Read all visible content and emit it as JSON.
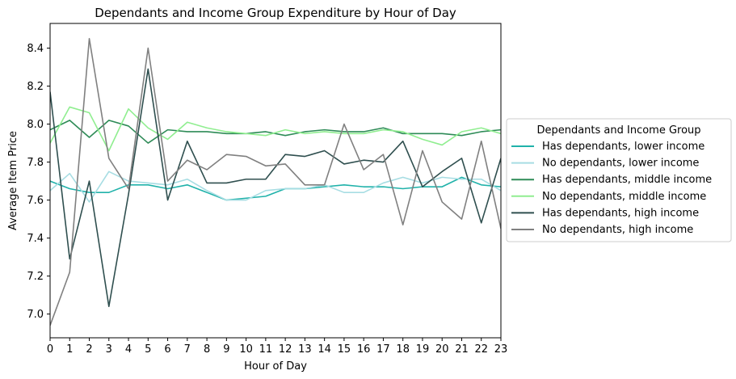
{
  "chart_data": {
    "type": "line",
    "title": "Dependants and Income Group Expenditure by Hour of Day",
    "xlabel": "Hour of Day",
    "ylabel": "Average Item Price",
    "x": [
      0,
      1,
      2,
      3,
      4,
      5,
      6,
      7,
      8,
      9,
      10,
      11,
      12,
      13,
      14,
      15,
      16,
      17,
      18,
      19,
      20,
      21,
      22,
      23
    ],
    "xlim": [
      0,
      23
    ],
    "ylim": [
      6.875,
      8.53
    ],
    "yticks": [
      7.0,
      7.2,
      7.4,
      7.6,
      7.8,
      8.0,
      8.2,
      8.4
    ],
    "ytick_labels": [
      "7.0",
      "7.2",
      "7.4",
      "7.6",
      "7.8",
      "8.0",
      "8.2",
      "8.4"
    ],
    "grid": false,
    "legend": {
      "title": "Dependants and Income Group",
      "placement": "outside-right"
    },
    "series": [
      {
        "name": "Has dependants, lower income",
        "color": "#20b2aa",
        "values": [
          7.7,
          7.66,
          7.64,
          7.64,
          7.68,
          7.68,
          7.66,
          7.68,
          7.64,
          7.6,
          7.61,
          7.62,
          7.66,
          7.66,
          7.67,
          7.68,
          7.67,
          7.67,
          7.66,
          7.67,
          7.67,
          7.72,
          7.68,
          7.67
        ]
      },
      {
        "name": "No dependants, lower income",
        "color": "#a7dde3",
        "values": [
          7.65,
          7.74,
          7.59,
          7.75,
          7.7,
          7.69,
          7.68,
          7.71,
          7.65,
          7.6,
          7.6,
          7.65,
          7.66,
          7.66,
          7.68,
          7.64,
          7.64,
          7.69,
          7.72,
          7.69,
          7.72,
          7.71,
          7.71,
          7.65
        ]
      },
      {
        "name": "Has dependants, middle income",
        "color": "#2e8b57",
        "values": [
          7.97,
          8.02,
          7.93,
          8.02,
          7.99,
          7.9,
          7.97,
          7.96,
          7.96,
          7.95,
          7.95,
          7.96,
          7.94,
          7.96,
          7.97,
          7.96,
          7.96,
          7.98,
          7.95,
          7.95,
          7.95,
          7.94,
          7.96,
          7.97
        ]
      },
      {
        "name": "No dependants, middle income",
        "color": "#90ee90",
        "values": [
          7.9,
          8.09,
          8.06,
          7.86,
          8.08,
          7.98,
          7.92,
          8.01,
          7.98,
          7.96,
          7.95,
          7.94,
          7.97,
          7.95,
          7.96,
          7.95,
          7.95,
          7.97,
          7.96,
          7.92,
          7.89,
          7.96,
          7.98,
          7.95
        ]
      },
      {
        "name": "Has dependants, high income",
        "color": "#2f4f4f",
        "values": [
          8.17,
          7.29,
          7.7,
          7.04,
          7.63,
          8.29,
          7.6,
          7.91,
          7.69,
          7.69,
          7.71,
          7.71,
          7.84,
          7.83,
          7.86,
          7.79,
          7.81,
          7.8,
          7.91,
          7.67,
          7.75,
          7.82,
          7.48,
          7.82
        ]
      },
      {
        "name": "No dependants, high income",
        "color": "#808080",
        "values": [
          6.94,
          7.22,
          8.45,
          7.82,
          7.66,
          8.4,
          7.7,
          7.81,
          7.76,
          7.84,
          7.83,
          7.78,
          7.79,
          7.68,
          7.68,
          8.0,
          7.76,
          7.84,
          7.47,
          7.86,
          7.59,
          7.5,
          7.91,
          7.45
        ]
      }
    ]
  }
}
